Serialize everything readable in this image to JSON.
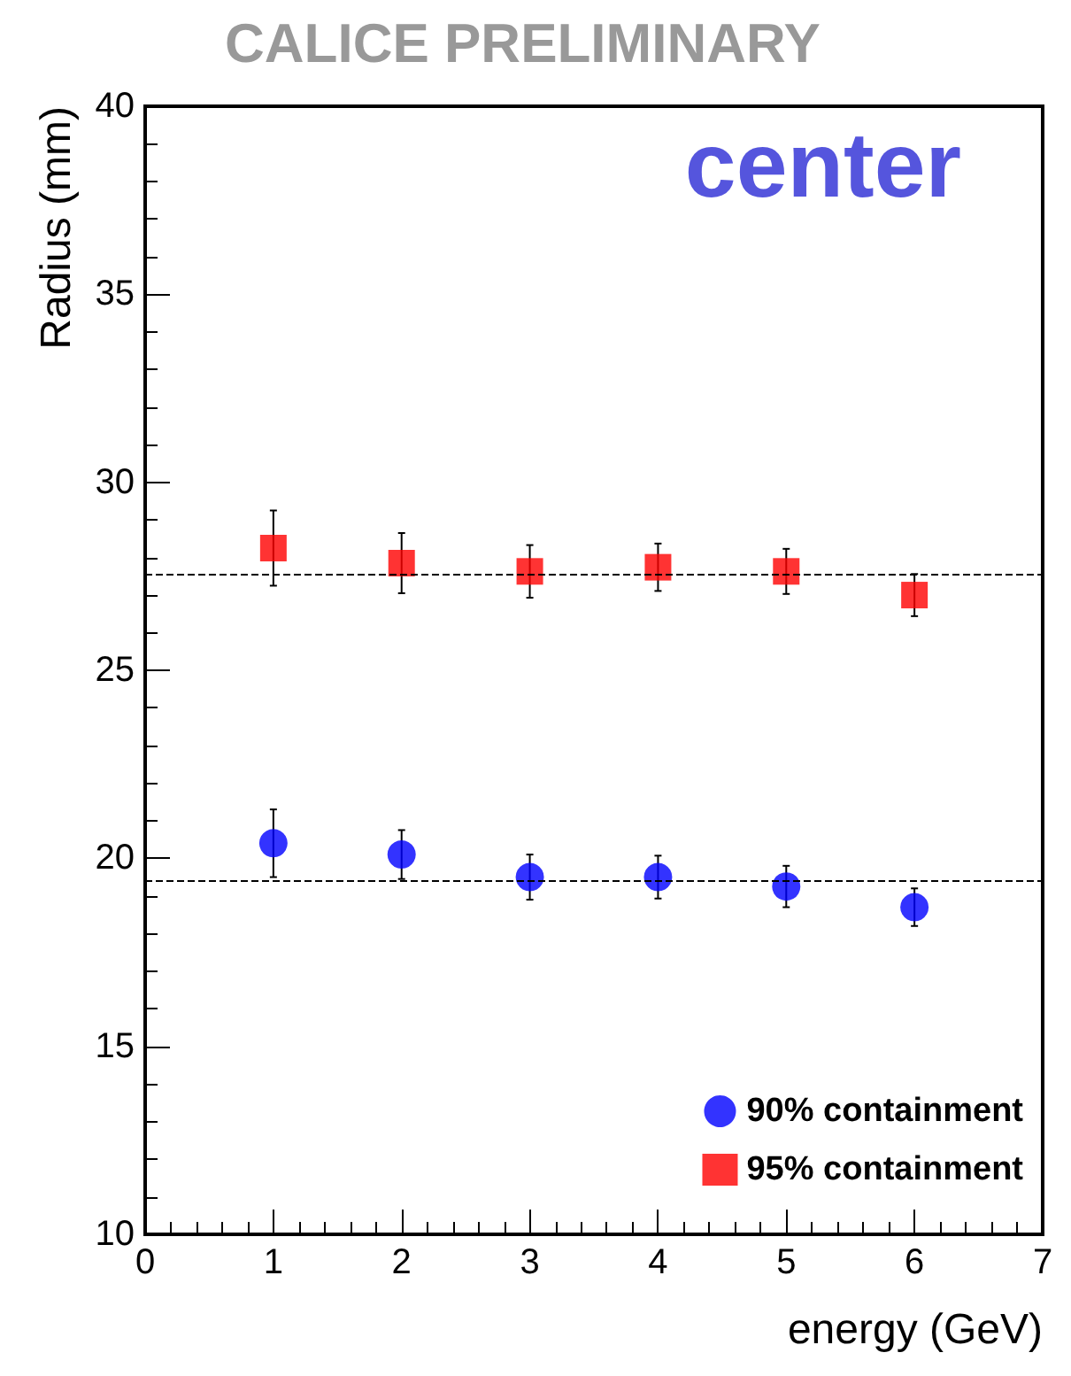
{
  "chart_data": {
    "type": "scatter",
    "title": "CALICE PRELIMINARY",
    "xlabel": "energy (GeV)",
    "ylabel": "Radius (mm)",
    "annotations": [
      "center"
    ],
    "x": [
      1,
      2,
      3,
      4,
      5,
      6
    ],
    "series": [
      {
        "name": "90% containment",
        "color": "#0000ff",
        "marker": "circle",
        "values": [
          20.4,
          20.1,
          19.5,
          19.5,
          19.25,
          18.7
        ],
        "errors": [
          0.9,
          0.65,
          0.6,
          0.57,
          0.55,
          0.5
        ]
      },
      {
        "name": "95% containment",
        "color": "#ff0000",
        "marker": "square",
        "values": [
          28.25,
          27.85,
          27.63,
          27.74,
          27.63,
          27.0
        ],
        "errors": [
          1.0,
          0.8,
          0.7,
          0.63,
          0.6,
          0.56
        ]
      }
    ],
    "ref_lines": [
      {
        "axis": "y",
        "value": 19.42,
        "color": "#000000",
        "line_style": "dashed"
      },
      {
        "axis": "y",
        "value": 27.57,
        "color": "#000000",
        "line_style": "dashed"
      }
    ],
    "xlim": [
      0,
      7
    ],
    "xticks": [
      0,
      1,
      2,
      3,
      4,
      5,
      6,
      7
    ],
    "ylim": [
      10,
      40
    ],
    "yticks": [
      10,
      15,
      20,
      25,
      30,
      35,
      40
    ],
    "grid": false,
    "legend": "bottom right"
  }
}
